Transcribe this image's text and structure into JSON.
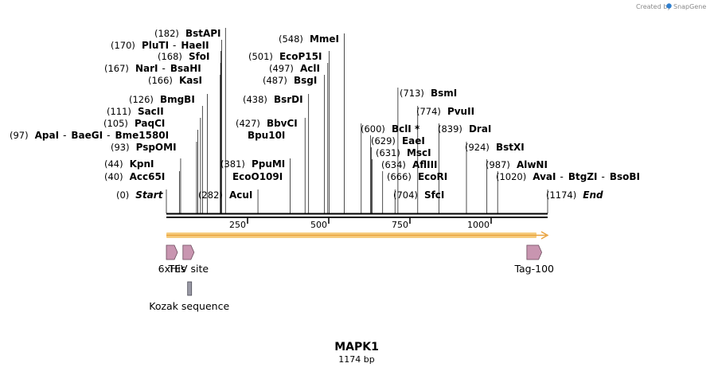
{
  "brand": {
    "created_by": "Created by",
    "name": "SnapGene",
    "color": "#2f7fcf"
  },
  "map": {
    "title": "MAPK1",
    "length_label": "1174 bp",
    "total_bp": 1174
  },
  "axis": {
    "ticks": [
      {
        "value": 250,
        "label": "250"
      },
      {
        "value": 500,
        "label": "500"
      },
      {
        "value": 750,
        "label": "750"
      },
      {
        "value": 1000,
        "label": "1000"
      }
    ]
  },
  "sites": [
    {
      "pos": 0,
      "label": "(0)",
      "names": [
        "Start"
      ],
      "italic": true
    },
    {
      "pos": 40,
      "label": "(40)",
      "names": [
        "Acc65I"
      ]
    },
    {
      "pos": 44,
      "label": "(44)",
      "names": [
        "KpnI"
      ]
    },
    {
      "pos": 93,
      "label": "(93)",
      "names": [
        "PspOMI"
      ]
    },
    {
      "pos": 97,
      "label": "(97)",
      "names": [
        "ApaI",
        "BaeGI",
        "Bme1580I"
      ]
    },
    {
      "pos": 105,
      "label": "(105)",
      "names": [
        "PaqCI"
      ]
    },
    {
      "pos": 111,
      "label": "(111)",
      "names": [
        "SacII"
      ]
    },
    {
      "pos": 126,
      "label": "(126)",
      "names": [
        "BmgBI"
      ]
    },
    {
      "pos": 166,
      "label": "(166)",
      "names": [
        "KasI"
      ]
    },
    {
      "pos": 167,
      "label": "(167)",
      "names": [
        "NarI",
        "BsaHI"
      ]
    },
    {
      "pos": 168,
      "label": "(168)",
      "names": [
        "SfoI"
      ]
    },
    {
      "pos": 170,
      "label": "(170)",
      "names": [
        "PluTI",
        "HaeII"
      ]
    },
    {
      "pos": 182,
      "label": "(182)",
      "names": [
        "BstAPI"
      ]
    },
    {
      "pos": 282,
      "label": "(282)",
      "names": [
        "AcuI"
      ]
    },
    {
      "pos": 381,
      "label": "(381)",
      "names": [
        "PpuMI"
      ],
      "sub_names": [
        "EcoO109I"
      ]
    },
    {
      "pos": 427,
      "label": "(427)",
      "names": [
        "BbvCI"
      ],
      "sub_names": [
        "Bpu10I"
      ]
    },
    {
      "pos": 438,
      "label": "(438)",
      "names": [
        "BsrDI"
      ]
    },
    {
      "pos": 487,
      "label": "(487)",
      "names": [
        "BsgI"
      ]
    },
    {
      "pos": 497,
      "label": "(497)",
      "names": [
        "AclI"
      ]
    },
    {
      "pos": 501,
      "label": "(501)",
      "names": [
        "EcoP15I"
      ]
    },
    {
      "pos": 548,
      "label": "(548)",
      "names": [
        "MmeI"
      ]
    },
    {
      "pos": 600,
      "label": "(600)",
      "names": [
        "BclI *"
      ]
    },
    {
      "pos": 629,
      "label": "(629)",
      "names": [
        "EaeI"
      ]
    },
    {
      "pos": 631,
      "label": "(631)",
      "names": [
        "MscI"
      ]
    },
    {
      "pos": 634,
      "label": "(634)",
      "names": [
        "AflIII"
      ]
    },
    {
      "pos": 666,
      "label": "(666)",
      "names": [
        "EcoRI"
      ]
    },
    {
      "pos": 704,
      "label": "(704)",
      "names": [
        "SfcI"
      ]
    },
    {
      "pos": 713,
      "label": "(713)",
      "names": [
        "BsmI"
      ]
    },
    {
      "pos": 774,
      "label": "(774)",
      "names": [
        "PvuII"
      ]
    },
    {
      "pos": 839,
      "label": "(839)",
      "names": [
        "DraI"
      ]
    },
    {
      "pos": 924,
      "label": "(924)",
      "names": [
        "BstXI"
      ]
    },
    {
      "pos": 987,
      "label": "(987)",
      "names": [
        "AlwNI"
      ]
    },
    {
      "pos": 1020,
      "label": "(1020)",
      "names": [
        "AvaI",
        "BtgZI",
        "BsoBI"
      ]
    },
    {
      "pos": 1174,
      "label": "(1174)",
      "names": [
        "End"
      ],
      "italic": true
    }
  ],
  "features": [
    {
      "name": "6xHis",
      "start": 0,
      "end": 18,
      "color": "#c895b0",
      "row": "top"
    },
    {
      "name": "TEV site",
      "start": 51,
      "end": 72,
      "color": "#c895b0",
      "row": "top"
    },
    {
      "name": "Kozak sequence",
      "start": 63,
      "end": 73,
      "color": "#9a9aa6",
      "row": "bottom"
    },
    {
      "name": "Tag-100",
      "start": 1110,
      "end": 1146,
      "color": "#c895b0",
      "row": "top"
    }
  ],
  "orf": {
    "start": 0,
    "end": 1174,
    "color": "#f6cc7e",
    "edge_color": "#e9a23d"
  }
}
